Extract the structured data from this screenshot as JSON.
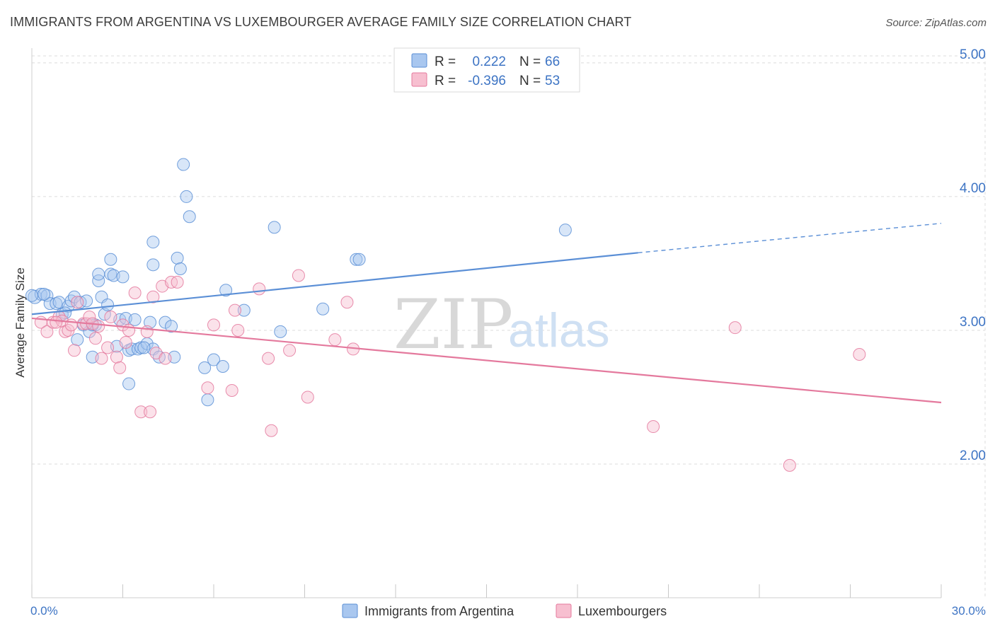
{
  "title": "IMMIGRANTS FROM ARGENTINA VS LUXEMBOURGER AVERAGE FAMILY SIZE CORRELATION CHART",
  "source": "Source: ZipAtlas.com",
  "watermark": {
    "zip": "ZIP",
    "atlas": "atlas"
  },
  "legend": {
    "r_label": "R =",
    "n_label": "N =",
    "rows": [
      {
        "r": "0.222",
        "n": "66",
        "color": "#a9c7ef",
        "stroke": "#5b8fd6"
      },
      {
        "r": "-0.396",
        "n": "53",
        "color": "#f7bfd0",
        "stroke": "#e4799d"
      }
    ]
  },
  "bottom_legend": [
    {
      "label": "Immigrants from Argentina",
      "color": "#a9c7ef",
      "stroke": "#5b8fd6"
    },
    {
      "label": "Luxembourgers",
      "color": "#f7bfd0",
      "stroke": "#e4799d"
    }
  ],
  "chart_data": {
    "type": "scatter",
    "title": "IMMIGRANTS FROM ARGENTINA VS LUXEMBOURGER AVERAGE FAMILY SIZE CORRELATION CHART",
    "xlabel": "",
    "ylabel": "Average Family Size",
    "xlim": [
      0,
      30
    ],
    "ylim": [
      1.0,
      5.1
    ],
    "x_tick_labels": [
      "0.0%",
      "30.0%"
    ],
    "y_ticks": [
      2.0,
      3.0,
      4.0,
      5.0
    ],
    "y_tick_labels": [
      "2.00",
      "3.00",
      "4.00",
      "5.00"
    ],
    "grid": true,
    "series": [
      {
        "name": "Immigrants from Argentina",
        "color": "#5b8fd6",
        "trend": {
          "x0": 0.0,
          "y0": 3.12,
          "x1": 20.0,
          "y1": 3.58,
          "dashed_to_x": 30.0,
          "dashed_to_y": 3.8
        },
        "points": [
          [
            0.1,
            3.25
          ],
          [
            0.3,
            3.27
          ],
          [
            0.5,
            3.26
          ],
          [
            0.6,
            3.2
          ],
          [
            0.8,
            3.2
          ],
          [
            0.9,
            3.21
          ],
          [
            1.0,
            3.12
          ],
          [
            1.2,
            3.18
          ],
          [
            1.3,
            3.22
          ],
          [
            1.4,
            3.25
          ],
          [
            1.5,
            2.93
          ],
          [
            1.6,
            3.21
          ],
          [
            1.7,
            3.04
          ],
          [
            1.8,
            3.22
          ],
          [
            1.9,
            2.99
          ],
          [
            2.0,
            2.8
          ],
          [
            2.1,
            3.04
          ],
          [
            2.2,
            3.37
          ],
          [
            2.2,
            3.42
          ],
          [
            2.3,
            3.25
          ],
          [
            2.4,
            3.12
          ],
          [
            2.5,
            3.19
          ],
          [
            2.6,
            3.42
          ],
          [
            2.6,
            3.53
          ],
          [
            2.7,
            3.41
          ],
          [
            2.8,
            2.88
          ],
          [
            2.9,
            3.08
          ],
          [
            3.0,
            3.4
          ],
          [
            3.1,
            3.09
          ],
          [
            3.2,
            2.6
          ],
          [
            3.2,
            2.85
          ],
          [
            3.3,
            2.86
          ],
          [
            3.4,
            3.08
          ],
          [
            3.5,
            2.86
          ],
          [
            3.6,
            2.87
          ],
          [
            3.8,
            2.9
          ],
          [
            3.9,
            3.06
          ],
          [
            4.0,
            2.86
          ],
          [
            4.0,
            3.49
          ],
          [
            4.0,
            3.66
          ],
          [
            4.2,
            2.8
          ],
          [
            4.4,
            3.06
          ],
          [
            4.6,
            3.03
          ],
          [
            4.7,
            2.8
          ],
          [
            4.8,
            3.54
          ],
          [
            4.9,
            3.46
          ],
          [
            5.0,
            4.24
          ],
          [
            5.1,
            4.0
          ],
          [
            5.2,
            3.85
          ],
          [
            5.7,
            2.72
          ],
          [
            5.8,
            2.48
          ],
          [
            6.0,
            2.78
          ],
          [
            6.3,
            2.73
          ],
          [
            6.4,
            3.3
          ],
          [
            7.0,
            3.15
          ],
          [
            8.0,
            3.77
          ],
          [
            8.2,
            2.99
          ],
          [
            9.6,
            3.16
          ],
          [
            10.7,
            3.53
          ],
          [
            10.8,
            3.53
          ],
          [
            17.6,
            3.75
          ],
          [
            0.0,
            3.26
          ],
          [
            0.4,
            3.27
          ],
          [
            1.1,
            3.13
          ],
          [
            2.0,
            3.04
          ],
          [
            3.7,
            2.87
          ]
        ]
      },
      {
        "name": "Luxembourgers",
        "color": "#e4799d",
        "trend": {
          "x0": 0.0,
          "y0": 3.09,
          "x1": 30.0,
          "y1": 2.46
        },
        "points": [
          [
            0.3,
            3.06
          ],
          [
            0.5,
            2.99
          ],
          [
            0.7,
            3.06
          ],
          [
            0.9,
            3.1
          ],
          [
            1.0,
            3.07
          ],
          [
            1.1,
            2.99
          ],
          [
            1.2,
            3.0
          ],
          [
            1.3,
            3.04
          ],
          [
            1.4,
            2.85
          ],
          [
            1.5,
            3.21
          ],
          [
            1.7,
            3.05
          ],
          [
            1.8,
            3.05
          ],
          [
            1.9,
            3.1
          ],
          [
            2.0,
            3.05
          ],
          [
            2.1,
            2.94
          ],
          [
            2.2,
            3.03
          ],
          [
            2.3,
            2.79
          ],
          [
            2.5,
            2.87
          ],
          [
            2.6,
            3.1
          ],
          [
            2.8,
            2.8
          ],
          [
            2.9,
            2.72
          ],
          [
            3.0,
            3.04
          ],
          [
            3.1,
            2.91
          ],
          [
            3.2,
            3.0
          ],
          [
            3.4,
            3.28
          ],
          [
            3.6,
            2.39
          ],
          [
            3.8,
            2.99
          ],
          [
            3.9,
            2.39
          ],
          [
            4.0,
            3.25
          ],
          [
            4.1,
            2.83
          ],
          [
            4.3,
            3.33
          ],
          [
            4.4,
            2.79
          ],
          [
            4.6,
            3.36
          ],
          [
            4.8,
            3.36
          ],
          [
            5.8,
            2.57
          ],
          [
            6.0,
            3.04
          ],
          [
            6.6,
            2.55
          ],
          [
            6.7,
            3.15
          ],
          [
            6.8,
            3.0
          ],
          [
            7.5,
            3.31
          ],
          [
            7.8,
            2.79
          ],
          [
            7.9,
            2.25
          ],
          [
            8.5,
            2.85
          ],
          [
            8.8,
            3.41
          ],
          [
            9.1,
            2.5
          ],
          [
            10.0,
            2.93
          ],
          [
            10.4,
            3.21
          ],
          [
            10.6,
            2.86
          ],
          [
            20.5,
            2.28
          ],
          [
            23.2,
            3.02
          ],
          [
            25.0,
            1.99
          ],
          [
            27.3,
            2.82
          ],
          [
            0.8,
            3.06
          ]
        ]
      }
    ]
  }
}
